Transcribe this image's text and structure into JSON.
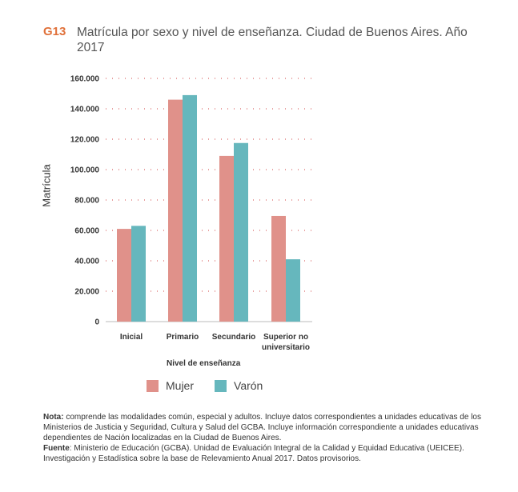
{
  "figure": {
    "id": "G13",
    "title": "Matrícula por sexo y nivel de enseñanza. Ciudad de Buenos Aires. Año 2017"
  },
  "chart_data": {
    "type": "bar",
    "title": "Matrícula por sexo y nivel de enseñanza. Ciudad de Buenos Aires. Año 2017",
    "xlabel": "Nivel de enseñanza",
    "ylabel": "Matrícula",
    "categories": [
      "Inicial",
      "Primario",
      "Secundario",
      "Superior no universitario"
    ],
    "category_lines": [
      [
        "Inicial"
      ],
      [
        "Primario"
      ],
      [
        "Secundario"
      ],
      [
        "Superior no",
        "universitario"
      ]
    ],
    "series": [
      {
        "name": "Mujer",
        "color": "#e0918a",
        "values": [
          61000,
          146000,
          109000,
          69500
        ]
      },
      {
        "name": "Varón",
        "color": "#66b7bd",
        "values": [
          63000,
          149000,
          117500,
          41000
        ]
      }
    ],
    "ylim": [
      0,
      160000
    ],
    "yticks": [
      0,
      20000,
      40000,
      60000,
      80000,
      100000,
      120000,
      140000,
      160000
    ],
    "ytick_labels": [
      "0",
      "20.000",
      "40.000",
      "60.000",
      "80.000",
      "100.000",
      "120.000",
      "140.000",
      "160.000"
    ],
    "grid": true,
    "legend_position": "bottom"
  },
  "notes": {
    "nota_label": "Nota:",
    "nota_text": " comprende las modalidades común, especial y adultos. Incluye datos correspondientes a unidades educativas de los Ministerios de Justicia y Seguridad, Cultura y Salud del GCBA. Incluye información correspondiente a unidades educativas dependientes de Nación localizadas en la Ciudad de Buenos Aires.",
    "fuente_label": "Fuente",
    "fuente_text": ": Ministerio de Educación (GCBA). Unidad de Evaluación Integral de la Calidad y Equidad Educativa (UEICEE). Investigación y Estadística sobre la base de Relevamiento Anual 2017. Datos provisorios."
  },
  "colors": {
    "accent": "#e0713a",
    "grid": "#d04040"
  }
}
